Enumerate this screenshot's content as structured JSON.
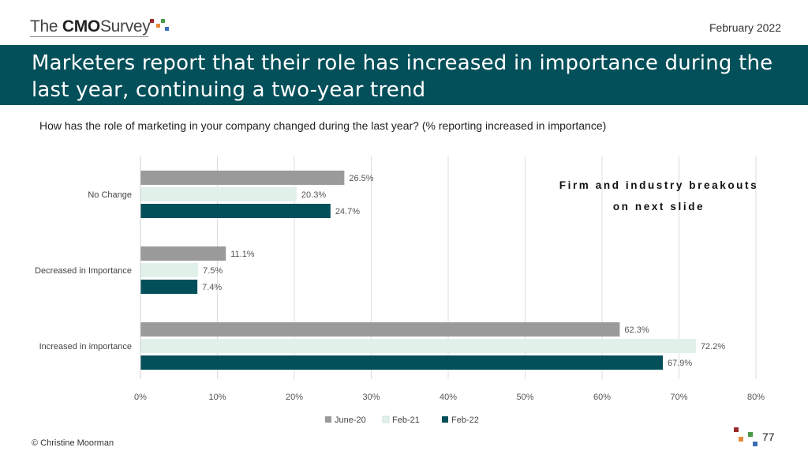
{
  "header": {
    "logo_prefix": "The",
    "logo_brand": "CMO",
    "logo_suffix": "Survey",
    "date": "February 2022"
  },
  "title": "Marketers report that their role has increased in importance during the last year, continuing a two-year trend",
  "question": "How has the role of marketing in your company changed during the last year? (% reporting increased in importance)",
  "note": "Firm and industry breakouts on next slide",
  "footer": {
    "copyright": "© Christine Moorman",
    "page_number": "77"
  },
  "colors": {
    "banner": "#03505a",
    "series_june20": "#9a9a9a",
    "series_feb21": "#e2f0ea",
    "series_feb22": "#03505a"
  },
  "chart_data": {
    "type": "bar",
    "orientation": "horizontal",
    "categories": [
      "No Change",
      "Decreased in Importance",
      "Increased in importance"
    ],
    "series": [
      {
        "name": "June-20",
        "values": [
          26.5,
          11.1,
          62.3
        ],
        "color": "#9a9a9a"
      },
      {
        "name": "Feb-21",
        "values": [
          20.3,
          7.5,
          72.2
        ],
        "color": "#e2f0ea"
      },
      {
        "name": "Feb-22",
        "values": [
          24.7,
          7.4,
          67.9
        ],
        "color": "#03505a"
      }
    ],
    "xlim": [
      0,
      80
    ],
    "xticks": [
      0,
      10,
      20,
      30,
      40,
      50,
      60,
      70,
      80
    ],
    "tick_suffix": "%",
    "data_labels": [
      "26.5%",
      "20.3%",
      "24.7%",
      "11.1%",
      "7.5%",
      "7.4%",
      "62.3%",
      "72.2%",
      "67.9%"
    ],
    "grid": "vertical",
    "legend": "bottom"
  }
}
